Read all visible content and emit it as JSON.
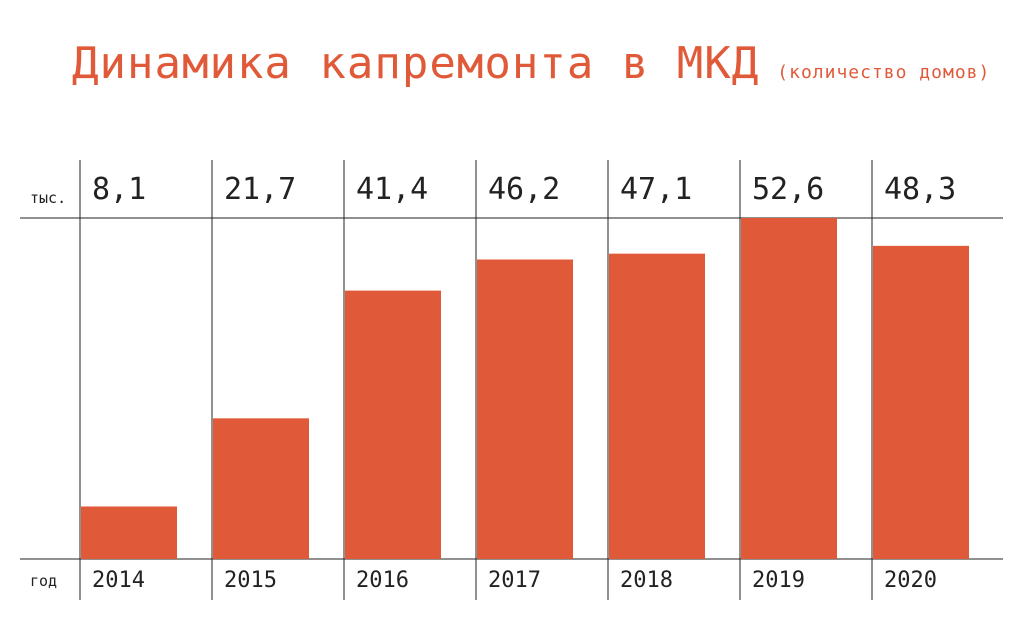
{
  "title": "Динамика капремонта в МКД",
  "subtitle": "(количество домов)",
  "colors": {
    "bar": "#e05a3a",
    "text": "#222222",
    "title": "#e05a3a",
    "line": "#222222"
  },
  "chart_data": {
    "type": "bar",
    "title": "Динамика капремонта в МКД",
    "subtitle": "(количество домов)",
    "value_unit_label": "тыс.",
    "category_axis_label": "год",
    "categories": [
      "2014",
      "2015",
      "2016",
      "2017",
      "2018",
      "2019",
      "2020"
    ],
    "values": [
      8.1,
      21.7,
      41.4,
      46.2,
      47.1,
      52.6,
      48.3
    ],
    "value_labels": [
      "8,1",
      "21,7",
      "41,4",
      "46,2",
      "47,1",
      "52,6",
      "48,3"
    ],
    "ylim": [
      0,
      52.6
    ],
    "grid": false,
    "legend": "none"
  }
}
